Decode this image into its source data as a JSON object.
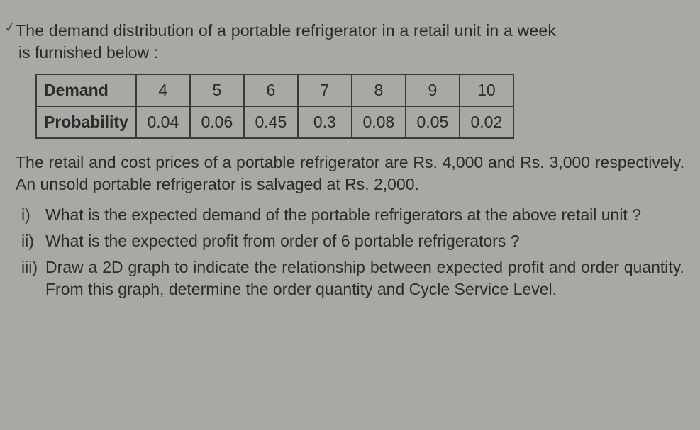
{
  "intro_line1": "The demand distribution of a portable refrigerator in a retail unit in a week",
  "intro_line2": "is furnished below :",
  "table": {
    "header_label": "Demand",
    "prob_label": "Probability",
    "demand": [
      "4",
      "5",
      "6",
      "7",
      "8",
      "9",
      "10"
    ],
    "probability": [
      "0.04",
      "0.06",
      "0.45",
      "0.3",
      "0.08",
      "0.05",
      "0.02"
    ]
  },
  "body_para": "The retail and cost prices of a portable refrigerator are Rs. 4,000 and Rs. 3,000 respectively. An unsold portable refrigerator is salvaged at Rs. 2,000.",
  "questions": [
    {
      "marker": "i)",
      "text": "What is the expected demand of the portable refrigerators at the above retail unit ?"
    },
    {
      "marker": "ii)",
      "text": "What is the expected profit from order of 6 portable refrigerators ?"
    },
    {
      "marker": "iii)",
      "text": "Draw a 2D graph to indicate the relationship between expected profit and order quantity. From this graph, determine the order quantity and Cycle Service Level."
    }
  ]
}
